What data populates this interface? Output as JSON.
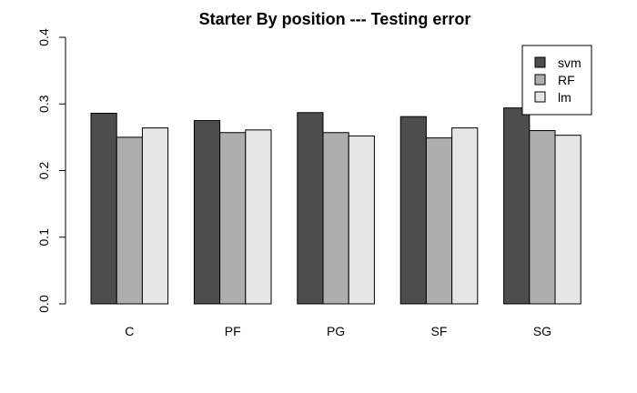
{
  "chart_data": {
    "type": "bar",
    "title": "Starter By position --- Testing error",
    "xlabel": "",
    "ylabel": "",
    "categories": [
      "C",
      "PF",
      "PG",
      "SF",
      "SG"
    ],
    "series": [
      {
        "name": "svm",
        "color": "#4d4d4d",
        "values": [
          0.286,
          0.275,
          0.287,
          0.281,
          0.294
        ]
      },
      {
        "name": "RF",
        "color": "#aeaeae",
        "values": [
          0.25,
          0.257,
          0.257,
          0.249,
          0.26
        ]
      },
      {
        "name": "lm",
        "color": "#e6e6e6",
        "values": [
          0.264,
          0.261,
          0.252,
          0.264,
          0.253
        ]
      }
    ],
    "ylim": [
      0,
      0.4
    ],
    "yticks": [
      "0.0",
      "0.1",
      "0.2",
      "0.3",
      "0.4"
    ],
    "grid": false,
    "legend_position": "top-right"
  }
}
